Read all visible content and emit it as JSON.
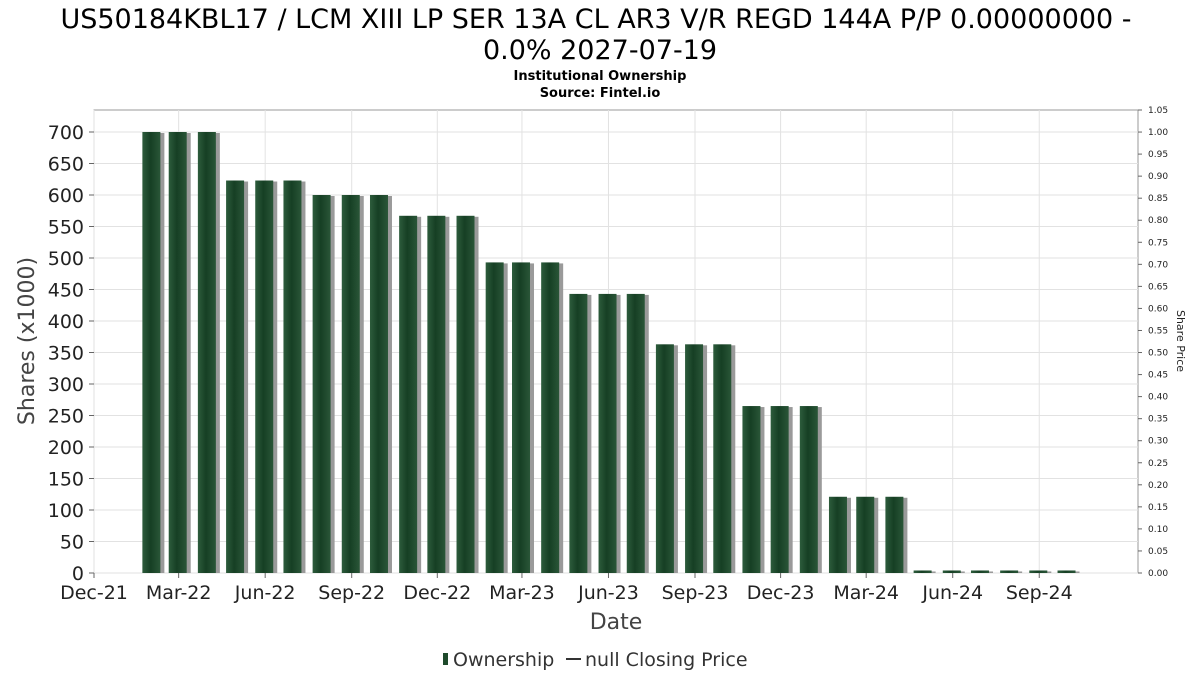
{
  "chart_data": {
    "type": "bar",
    "title": "US50184KBL17 / LCM XIII LP SER 13A CL AR3 V/R REGD 144A P/P 0.00000000 - 0.0% 2027-07-19",
    "title_lines": [
      "US50184KBL17 / LCM XIII LP SER 13A CL AR3 V/R REGD 144A P/P 0.00000000 -",
      "0.0% 2027-07-19"
    ],
    "subtitle": "Institutional Ownership",
    "source": "Source: Fintel.io",
    "xlabel": "Date",
    "ylabel": "Shares (x1000)",
    "ylabel_right": "Share Price",
    "x_domain": [
      "2021-12-01",
      "2024-12-15"
    ],
    "ylim": [
      0,
      700
    ],
    "ylim_right": [
      0,
      1.05
    ],
    "yticks": [
      "0",
      "50",
      "100",
      "150",
      "200",
      "250",
      "300",
      "350",
      "400",
      "450",
      "500",
      "550",
      "600",
      "650",
      "700"
    ],
    "yticks_right": [
      "0.00",
      "0.05",
      "0.10",
      "0.15",
      "0.20",
      "0.25",
      "0.30",
      "0.35",
      "0.40",
      "0.45",
      "0.50",
      "0.55",
      "0.60",
      "0.65",
      "0.70",
      "0.75",
      "0.80",
      "0.85",
      "0.90",
      "0.95",
      "1.00",
      "1.05"
    ],
    "xticks": [
      {
        "date": "2021-12-01",
        "label": "Dec-21"
      },
      {
        "date": "2022-03-01",
        "label": "Mar-22"
      },
      {
        "date": "2022-06-01",
        "label": "Jun-22"
      },
      {
        "date": "2022-09-01",
        "label": "Sep-22"
      },
      {
        "date": "2022-12-01",
        "label": "Dec-22"
      },
      {
        "date": "2023-03-01",
        "label": "Mar-23"
      },
      {
        "date": "2023-06-01",
        "label": "Jun-23"
      },
      {
        "date": "2023-09-01",
        "label": "Sep-23"
      },
      {
        "date": "2023-12-01",
        "label": "Dec-23"
      },
      {
        "date": "2024-03-01",
        "label": "Mar-24"
      },
      {
        "date": "2024-06-01",
        "label": "Jun-24"
      },
      {
        "date": "2024-09-01",
        "label": "Sep-24"
      }
    ],
    "series": [
      {
        "name": "Ownership",
        "color": "#1e4a2c",
        "points": [
          {
            "date": "2022-01-31",
            "value": 700
          },
          {
            "date": "2022-02-28",
            "value": 700
          },
          {
            "date": "2022-03-31",
            "value": 700
          },
          {
            "date": "2022-04-30",
            "value": 623
          },
          {
            "date": "2022-05-31",
            "value": 623
          },
          {
            "date": "2022-06-30",
            "value": 623
          },
          {
            "date": "2022-07-31",
            "value": 600
          },
          {
            "date": "2022-08-31",
            "value": 600
          },
          {
            "date": "2022-09-30",
            "value": 600
          },
          {
            "date": "2022-10-31",
            "value": 567
          },
          {
            "date": "2022-11-30",
            "value": 567
          },
          {
            "date": "2022-12-31",
            "value": 567
          },
          {
            "date": "2023-01-31",
            "value": 493
          },
          {
            "date": "2023-02-28",
            "value": 493
          },
          {
            "date": "2023-03-31",
            "value": 493
          },
          {
            "date": "2023-04-30",
            "value": 443
          },
          {
            "date": "2023-05-31",
            "value": 443
          },
          {
            "date": "2023-06-30",
            "value": 443
          },
          {
            "date": "2023-07-31",
            "value": 363
          },
          {
            "date": "2023-08-31",
            "value": 363
          },
          {
            "date": "2023-09-30",
            "value": 363
          },
          {
            "date": "2023-10-31",
            "value": 265
          },
          {
            "date": "2023-11-30",
            "value": 265
          },
          {
            "date": "2023-12-31",
            "value": 265
          },
          {
            "date": "2024-01-31",
            "value": 121
          },
          {
            "date": "2024-02-29",
            "value": 121
          },
          {
            "date": "2024-03-31",
            "value": 121
          },
          {
            "date": "2024-04-30",
            "value": 4
          },
          {
            "date": "2024-05-31",
            "value": 4
          },
          {
            "date": "2024-06-30",
            "value": 4
          },
          {
            "date": "2024-07-31",
            "value": 4
          },
          {
            "date": "2024-08-31",
            "value": 4
          },
          {
            "date": "2024-09-30",
            "value": 4
          }
        ]
      },
      {
        "name": "null Closing Price",
        "color": "#333333",
        "points": []
      }
    ],
    "grid": true,
    "legend_position": "bottom-center"
  }
}
